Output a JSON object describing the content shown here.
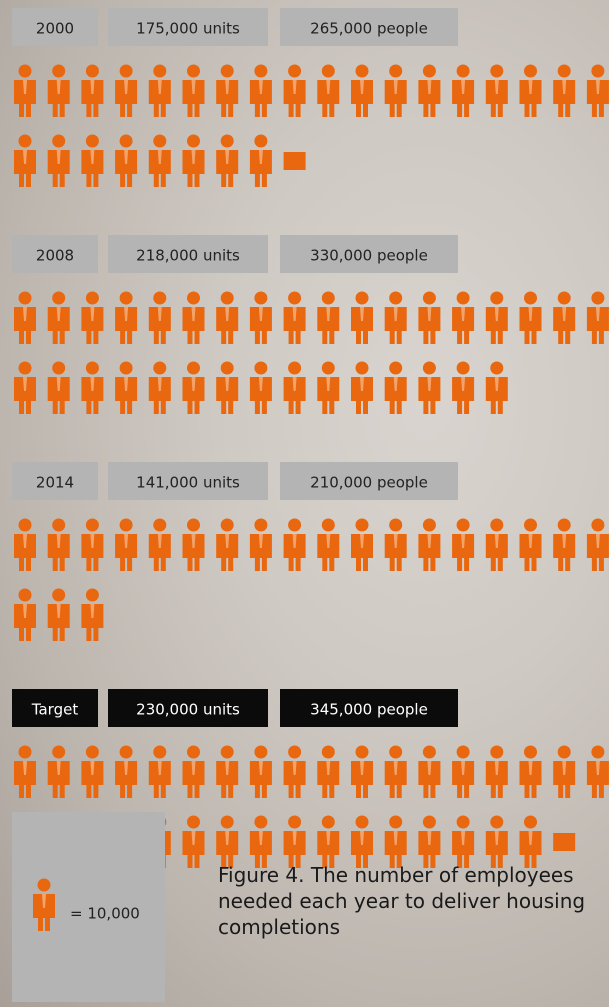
{
  "chart_data": {
    "type": "pictogram",
    "categories": [
      "2000",
      "2008",
      "2014",
      "Target"
    ],
    "units": {
      "values": [
        175000,
        218000,
        141000,
        230000
      ],
      "value_labels": [
        "175,000 units",
        "218,000 units",
        "141,000 units",
        "230,000 units"
      ]
    },
    "people": {
      "values": [
        265000,
        330000,
        210000,
        345000
      ],
      "value_labels": [
        "265,000 people",
        "330,000 people",
        "210,000 people",
        "345,000 people"
      ]
    },
    "unit": {
      "value": 10000,
      "label": "= 10,000"
    },
    "icons_per_row": 18,
    "icon_color": "#e8670f",
    "box_colors": [
      "#b4b4b4",
      "#b4b4b4",
      "#b4b4b4",
      "#0b0b0b"
    ],
    "box_text_colors": [
      "#222222",
      "#222222",
      "#222222",
      "#ffffff"
    ],
    "caption": "Figure 4. The number of employees needed each year to deliver housing completions"
  }
}
